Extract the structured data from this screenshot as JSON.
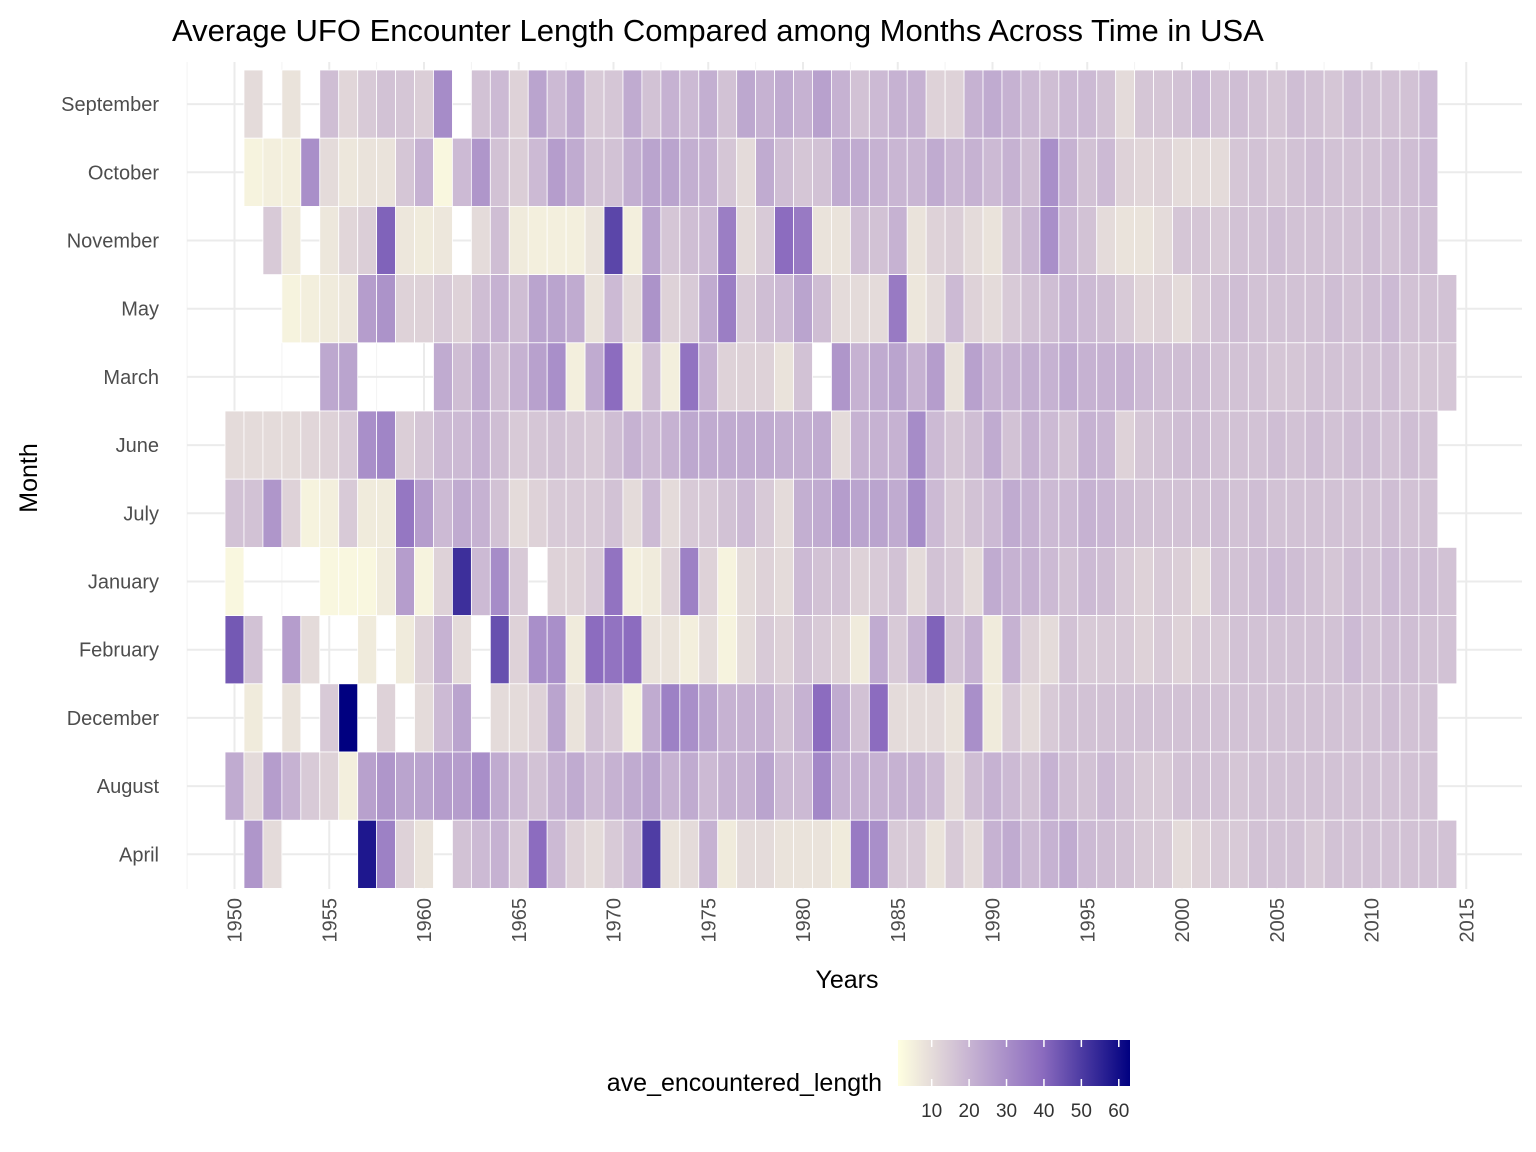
{
  "chart_data": {
    "type": "heatmap",
    "title": "Average UFO Encounter Length Compared among Months Across Time in USA",
    "xlabel": "Years",
    "ylabel": "Month",
    "xlim": [
      1947,
      2017
    ],
    "x_ticks": [
      1950,
      1955,
      1960,
      1965,
      1970,
      1975,
      1980,
      1985,
      1990,
      1995,
      2000,
      2005,
      2010,
      2015
    ],
    "months": [
      "September",
      "October",
      "November",
      "May",
      "March",
      "June",
      "July",
      "January",
      "February",
      "December",
      "August",
      "April"
    ],
    "years": [
      1950,
      1951,
      1952,
      1953,
      1954,
      1955,
      1956,
      1957,
      1958,
      1959,
      1960,
      1961,
      1962,
      1963,
      1964,
      1965,
      1966,
      1967,
      1968,
      1969,
      1970,
      1971,
      1972,
      1973,
      1974,
      1975,
      1976,
      1977,
      1978,
      1979,
      1980,
      1981,
      1982,
      1983,
      1984,
      1985,
      1986,
      1987,
      1988,
      1989,
      1990,
      1991,
      1992,
      1993,
      1994,
      1995,
      1996,
      1997,
      1998,
      1999,
      2000,
      2001,
      2002,
      2003,
      2004,
      2005,
      2006,
      2007,
      2008,
      2009,
      2010,
      2011,
      2012,
      2013,
      2014
    ],
    "grid": true,
    "legend": {
      "title": "ave_encountered_length",
      "position": "bottom",
      "ticks": [
        10,
        20,
        30,
        40,
        50,
        60
      ],
      "range": [
        1,
        63
      ],
      "colors": [
        "#ffffe0",
        "#c9b6d3",
        "#8c6cbf",
        "#000080"
      ]
    },
    "values": [
      [
        null,
        10,
        null,
        8,
        null,
        17,
        11,
        14,
        16,
        15,
        13,
        31,
        null,
        16,
        18,
        12,
        24,
        18,
        22,
        14,
        15,
        22,
        16,
        20,
        18,
        21,
        16,
        23,
        20,
        22,
        20,
        25,
        20,
        16,
        18,
        20,
        20,
        12,
        12,
        20,
        22,
        20,
        18,
        17,
        18,
        18,
        16,
        10,
        15,
        15,
        16,
        18,
        16,
        17,
        16,
        15,
        17,
        16,
        15,
        17,
        16,
        16,
        16,
        18,
        null
      ],
      [
        null,
        4,
        5,
        5,
        30,
        10,
        7,
        8,
        8,
        15,
        20,
        3,
        18,
        28,
        16,
        13,
        18,
        26,
        22,
        16,
        16,
        21,
        24,
        24,
        21,
        20,
        15,
        10,
        22,
        17,
        15,
        16,
        22,
        22,
        20,
        19,
        19,
        22,
        19,
        20,
        18,
        20,
        17,
        30,
        20,
        16,
        18,
        12,
        11,
        12,
        10,
        10,
        10,
        15,
        16,
        15,
        16,
        17,
        16,
        16,
        16,
        17,
        17,
        18,
        null
      ],
      [
        null,
        null,
        14,
        6,
        null,
        7,
        11,
        13,
        42,
        7,
        6,
        7,
        null,
        10,
        17,
        6,
        5,
        5,
        5,
        8,
        48,
        5,
        24,
        15,
        17,
        18,
        35,
        10,
        14,
        40,
        36,
        8,
        8,
        17,
        16,
        20,
        8,
        12,
        13,
        10,
        8,
        16,
        19,
        30,
        18,
        16,
        10,
        8,
        8,
        10,
        15,
        15,
        14,
        16,
        16,
        17,
        16,
        16,
        16,
        16,
        17,
        16,
        17,
        17,
        null
      ],
      [
        null,
        null,
        null,
        4,
        5,
        6,
        7,
        26,
        29,
        12,
        12,
        14,
        12,
        17,
        20,
        17,
        24,
        24,
        22,
        8,
        18,
        10,
        29,
        12,
        14,
        22,
        35,
        14,
        17,
        18,
        24,
        17,
        10,
        10,
        10,
        36,
        7,
        10,
        18,
        12,
        10,
        14,
        16,
        17,
        19,
        18,
        17,
        14,
        11,
        12,
        10,
        14,
        16,
        17,
        16,
        16,
        16,
        16,
        17,
        16,
        17,
        18,
        16,
        16,
        16
      ],
      [
        null,
        null,
        null,
        null,
        null,
        23,
        24,
        null,
        null,
        null,
        null,
        22,
        17,
        22,
        17,
        20,
        25,
        30,
        5,
        22,
        40,
        5,
        17,
        5,
        38,
        20,
        12,
        12,
        12,
        8,
        16,
        null,
        28,
        20,
        22,
        24,
        20,
        26,
        8,
        25,
        20,
        20,
        21,
        20,
        22,
        20,
        20,
        20,
        18,
        17,
        17,
        17,
        16,
        16,
        16,
        15,
        15,
        16,
        16,
        16,
        16,
        17,
        15,
        15,
        15
      ],
      [
        10,
        10,
        10,
        10,
        11,
        12,
        14,
        30,
        33,
        13,
        15,
        18,
        18,
        20,
        17,
        14,
        15,
        16,
        15,
        14,
        17,
        20,
        18,
        20,
        23,
        22,
        22,
        22,
        22,
        21,
        21,
        22,
        10,
        20,
        20,
        20,
        31,
        18,
        15,
        17,
        22,
        16,
        20,
        18,
        16,
        20,
        19,
        12,
        15,
        16,
        17,
        17,
        16,
        16,
        16,
        17,
        16,
        17,
        16,
        17,
        17,
        16,
        17,
        16,
        null
      ],
      [
        16,
        16,
        28,
        12,
        4,
        5,
        14,
        6,
        6,
        37,
        26,
        18,
        22,
        20,
        16,
        10,
        12,
        14,
        14,
        14,
        16,
        10,
        18,
        10,
        14,
        14,
        16,
        18,
        14,
        10,
        21,
        22,
        26,
        24,
        24,
        22,
        31,
        18,
        14,
        16,
        18,
        22,
        20,
        18,
        18,
        20,
        19,
        17,
        16,
        16,
        16,
        16,
        17,
        16,
        17,
        16,
        16,
        16,
        16,
        16,
        16,
        17,
        16,
        16,
        null
      ],
      [
        3,
        null,
        null,
        null,
        null,
        3,
        3,
        3,
        6,
        26,
        4,
        12,
        53,
        18,
        31,
        14,
        null,
        12,
        12,
        14,
        38,
        5,
        6,
        12,
        34,
        12,
        4,
        10,
        12,
        10,
        18,
        16,
        16,
        12,
        14,
        16,
        10,
        16,
        14,
        10,
        22,
        20,
        20,
        18,
        16,
        18,
        17,
        14,
        12,
        14,
        13,
        10,
        16,
        16,
        17,
        18,
        17,
        16,
        15,
        17,
        16,
        18,
        17,
        17,
        16
      ],
      [
        44,
        16,
        null,
        26,
        10,
        null,
        null,
        6,
        null,
        6,
        12,
        20,
        10,
        null,
        46,
        12,
        30,
        30,
        6,
        40,
        38,
        40,
        8,
        8,
        5,
        10,
        4,
        10,
        14,
        12,
        16,
        14,
        12,
        6,
        22,
        14,
        20,
        42,
        16,
        20,
        6,
        20,
        12,
        10,
        16,
        14,
        14,
        14,
        12,
        14,
        12,
        14,
        14,
        16,
        16,
        16,
        16,
        16,
        16,
        18,
        16,
        17,
        17,
        16,
        16
      ],
      [
        null,
        6,
        null,
        8,
        null,
        14,
        63,
        null,
        12,
        null,
        10,
        18,
        24,
        null,
        10,
        10,
        12,
        24,
        8,
        16,
        14,
        4,
        22,
        34,
        30,
        24,
        20,
        20,
        20,
        16,
        20,
        40,
        22,
        16,
        40,
        10,
        10,
        10,
        8,
        30,
        6,
        14,
        10,
        14,
        16,
        16,
        16,
        16,
        16,
        16,
        16,
        16,
        16,
        16,
        16,
        16,
        16,
        16,
        16,
        16,
        16,
        17,
        16,
        16,
        null
      ],
      [
        22,
        10,
        26,
        20,
        14,
        12,
        5,
        25,
        28,
        24,
        24,
        26,
        26,
        30,
        22,
        18,
        16,
        20,
        22,
        18,
        20,
        22,
        24,
        20,
        22,
        18,
        20,
        20,
        24,
        18,
        18,
        32,
        20,
        20,
        20,
        20,
        20,
        18,
        10,
        17,
        20,
        18,
        16,
        20,
        17,
        16,
        18,
        16,
        14,
        14,
        16,
        16,
        16,
        15,
        16,
        16,
        16,
        16,
        16,
        16,
        16,
        16,
        16,
        16,
        null
      ],
      [
        null,
        28,
        10,
        null,
        null,
        null,
        null,
        58,
        34,
        12,
        8,
        null,
        16,
        18,
        20,
        14,
        40,
        18,
        12,
        10,
        14,
        18,
        50,
        8,
        10,
        20,
        6,
        10,
        10,
        8,
        8,
        8,
        6,
        36,
        30,
        14,
        14,
        8,
        14,
        10,
        20,
        22,
        18,
        20,
        22,
        18,
        17,
        16,
        14,
        14,
        10,
        12,
        14,
        14,
        16,
        16,
        16,
        14,
        16,
        16,
        16,
        16,
        16,
        16,
        16
      ]
    ]
  }
}
